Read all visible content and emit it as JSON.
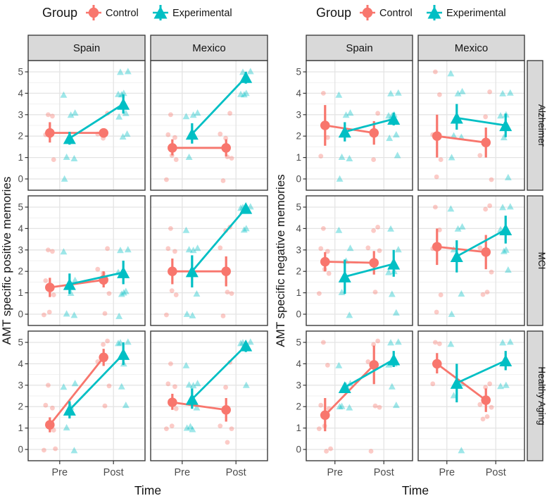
{
  "legend": {
    "title": "Group",
    "items": [
      {
        "label": "Control",
        "shape": "circle",
        "color": "#F8766D"
      },
      {
        "label": "Experimental",
        "shape": "triangle",
        "color": "#00BFC4"
      }
    ]
  },
  "colors": {
    "control": "#F8766D",
    "experimental": "#00BFC4",
    "strip_fill": "#D9D9D9",
    "strip_border": "#333333",
    "panel_border": "#3A3A3A",
    "grid_major": "#E4E4E4",
    "grid_minor": "#F1F1F1",
    "tick_text": "#4D4D4D",
    "title_text": "#141414"
  },
  "chart_data": [
    {
      "type": "line",
      "ylabel": "AMT specific positive memories",
      "xlabel": "Time",
      "x_categories": [
        "Pre",
        "Post"
      ],
      "ylim": [
        0,
        5
      ],
      "yticks": [
        0,
        1,
        2,
        3,
        4,
        5
      ],
      "col_facets": [
        "Spain",
        "Mexico"
      ],
      "row_facets": [
        "Alzheimer",
        "MCI",
        "Healthy Aging"
      ],
      "row_strips_visible": false,
      "legend_position": "top",
      "grid": true,
      "facets": [
        {
          "row": "Alzheimer",
          "col": "Spain",
          "series": [
            {
              "name": "Control",
              "means": [
                2.15,
                2.15
              ],
              "ci_low": [
                1.7,
                2.0
              ],
              "ci_high": [
                2.65,
                2.3
              ],
              "points_pre": [
                3,
                3,
                2,
                1
              ],
              "points_post": [
                3,
                2,
                2
              ]
            },
            {
              "name": "Experimental",
              "means": [
                1.9,
                3.5
              ],
              "ci_low": [
                1.6,
                3.05
              ],
              "ci_high": [
                2.2,
                3.95
              ],
              "points_pre": [
                4,
                3,
                3,
                1,
                1,
                0
              ],
              "points_post": [
                5,
                5,
                4,
                4,
                4,
                3,
                3,
                2,
                2
              ]
            }
          ]
        },
        {
          "row": "Alzheimer",
          "col": "Mexico",
          "series": [
            {
              "name": "Control",
              "means": [
                1.45,
                1.45
              ],
              "ci_low": [
                1.1,
                1.05
              ],
              "ci_high": [
                1.85,
                1.85
              ],
              "points_pre": [
                3,
                2,
                2,
                1,
                1,
                0
              ],
              "points_post": [
                3,
                2,
                2,
                1,
                1,
                0
              ]
            },
            {
              "name": "Experimental",
              "means": [
                2.1,
                4.75
              ],
              "ci_low": [
                1.65,
                4.45
              ],
              "ci_high": [
                2.6,
                5.0
              ],
              "points_pre": [
                3,
                3,
                3,
                1
              ],
              "points_post": [
                5,
                5,
                4,
                4,
                4
              ]
            }
          ]
        },
        {
          "row": "MCI",
          "col": "Spain",
          "series": [
            {
              "name": "Control",
              "means": [
                1.25,
                1.6
              ],
              "ci_low": [
                0.8,
                1.25
              ],
              "ci_high": [
                1.7,
                2.0
              ],
              "points_pre": [
                3,
                3,
                1.5,
                1,
                0,
                0
              ],
              "points_post": [
                3,
                2,
                2,
                1,
                0
              ]
            },
            {
              "name": "Experimental",
              "means": [
                1.4,
                1.95
              ],
              "ci_low": [
                0.95,
                1.4
              ],
              "ci_high": [
                1.9,
                2.5
              ],
              "points_pre": [
                3,
                1.5,
                1,
                0,
                0
              ],
              "points_post": [
                3,
                3,
                2,
                1,
                1,
                1,
                0
              ]
            }
          ]
        },
        {
          "row": "MCI",
          "col": "Mexico",
          "series": [
            {
              "name": "Control",
              "means": [
                2.0,
                2.0
              ],
              "ci_low": [
                1.4,
                1.3
              ],
              "ci_high": [
                2.6,
                2.7
              ],
              "points_pre": [
                4,
                3,
                3,
                1,
                1,
                0
              ],
              "points_post": [
                4,
                4,
                3,
                1,
                1,
                0
              ]
            },
            {
              "name": "Experimental",
              "means": [
                2.0,
                4.95
              ],
              "ci_low": [
                1.25,
                4.8
              ],
              "ci_high": [
                2.75,
                5.0
              ],
              "points_pre": [
                4,
                3,
                3,
                3,
                1,
                0,
                0
              ],
              "points_post": [
                5,
                5,
                5,
                4,
                4
              ]
            }
          ]
        },
        {
          "row": "Healthy Aging",
          "col": "Spain",
          "series": [
            {
              "name": "Control",
              "means": [
                1.15,
                4.3
              ],
              "ci_low": [
                0.8,
                3.9
              ],
              "ci_high": [
                1.5,
                4.7
              ],
              "points_pre": [
                3,
                2,
                2,
                1,
                1,
                0,
                0
              ],
              "points_post": [
                5,
                5,
                4,
                3,
                2
              ]
            },
            {
              "name": "Experimental",
              "means": [
                1.85,
                4.45
              ],
              "ci_low": [
                1.45,
                3.95
              ],
              "ci_high": [
                2.25,
                5.0
              ],
              "points_pre": [
                3,
                3,
                2,
                1,
                0
              ],
              "points_post": [
                5,
                5,
                5,
                4,
                3,
                2
              ]
            }
          ]
        },
        {
          "row": "Healthy Aging",
          "col": "Mexico",
          "series": [
            {
              "name": "Control",
              "means": [
                2.2,
                1.85
              ],
              "ci_low": [
                1.85,
                1.3
              ],
              "ci_high": [
                2.6,
                2.4
              ],
              "points_pre": [
                4,
                3,
                3,
                2,
                1,
                1
              ],
              "points_post": [
                4,
                3,
                1,
                1,
                0.3
              ]
            },
            {
              "name": "Experimental",
              "means": [
                2.35,
                4.85
              ],
              "ci_low": [
                1.9,
                4.55
              ],
              "ci_high": [
                2.85,
                5.0
              ],
              "points_pre": [
                4,
                3,
                3,
                3,
                2,
                1,
                1,
                1
              ],
              "points_post": [
                5,
                5,
                5,
                3
              ]
            }
          ]
        }
      ]
    },
    {
      "type": "line",
      "ylabel": "AMT specific negative memories",
      "xlabel": "Time",
      "x_categories": [
        "Pre",
        "Post"
      ],
      "ylim": [
        0,
        5
      ],
      "yticks": [
        0,
        1,
        2,
        3,
        4,
        5
      ],
      "col_facets": [
        "Spain",
        "Mexico"
      ],
      "row_facets": [
        "Alzheimer",
        "MCI",
        "Healthy Aging"
      ],
      "row_strips_visible": true,
      "legend_position": "top",
      "grid": true,
      "facets": [
        {
          "row": "Alzheimer",
          "col": "Spain",
          "series": [
            {
              "name": "Control",
              "means": [
                2.5,
                2.15
              ],
              "ci_low": [
                1.55,
                1.6
              ],
              "ci_high": [
                3.45,
                2.7
              ],
              "points_pre": [
                4,
                2,
                1
              ],
              "points_post": [
                3,
                1
              ]
            },
            {
              "name": "Experimental",
              "means": [
                2.2,
                2.8
              ],
              "ci_low": [
                1.75,
                2.5
              ],
              "ci_high": [
                2.65,
                3.1
              ],
              "points_pre": [
                4,
                3,
                3,
                1,
                1,
                0
              ],
              "points_post": [
                4,
                4,
                3,
                3,
                3,
                2,
                2,
                1
              ]
            }
          ]
        },
        {
          "row": "Alzheimer",
          "col": "Mexico",
          "series": [
            {
              "name": "Control",
              "means": [
                2.0,
                1.7
              ],
              "ci_low": [
                1.0,
                1.0
              ],
              "ci_high": [
                3.0,
                2.4
              ],
              "points_pre": [
                5,
                4,
                2,
                1,
                0
              ],
              "points_post": [
                4,
                3,
                1,
                0
              ]
            },
            {
              "name": "Experimental",
              "means": [
                2.85,
                2.5
              ],
              "ci_low": [
                2.3,
                1.95
              ],
              "ci_high": [
                3.5,
                3.05
              ],
              "points_pre": [
                5,
                4,
                4,
                2,
                2,
                1
              ],
              "points_post": [
                4,
                4,
                3,
                3,
                2,
                0
              ]
            }
          ]
        },
        {
          "row": "MCI",
          "col": "Spain",
          "series": [
            {
              "name": "Control",
              "means": [
                2.45,
                2.4
              ],
              "ci_low": [
                2.0,
                1.85
              ],
              "ci_high": [
                2.9,
                2.95
              ],
              "points_pre": [
                4,
                3,
                3,
                2,
                2,
                1
              ],
              "points_post": [
                4,
                4,
                3,
                3,
                1
              ]
            },
            {
              "name": "Experimental",
              "means": [
                1.75,
                2.35
              ],
              "ci_low": [
                0.95,
                1.75
              ],
              "ci_high": [
                2.55,
                3.0
              ],
              "points_pre": [
                4,
                3,
                2.5,
                1,
                0
              ],
              "points_post": [
                4,
                3,
                2,
                2,
                1,
                0
              ]
            }
          ]
        },
        {
          "row": "MCI",
          "col": "Mexico",
          "series": [
            {
              "name": "Control",
              "means": [
                3.15,
                2.9
              ],
              "ci_low": [
                2.3,
                2.1
              ],
              "ci_high": [
                4.0,
                3.7
              ],
              "points_pre": [
                5,
                4,
                3,
                1,
                0
              ],
              "points_post": [
                5,
                5,
                3,
                2,
                1,
                1
              ]
            },
            {
              "name": "Experimental",
              "means": [
                2.7,
                3.95
              ],
              "ci_low": [
                1.95,
                3.3
              ],
              "ci_high": [
                3.45,
                4.6
              ],
              "points_pre": [
                5,
                4,
                4,
                3,
                1,
                0
              ],
              "points_post": [
                5,
                5,
                4,
                3,
                3,
                2
              ]
            }
          ]
        },
        {
          "row": "Healthy Aging",
          "col": "Spain",
          "series": [
            {
              "name": "Control",
              "means": [
                1.6,
                3.95
              ],
              "ci_low": [
                0.85,
                3.05
              ],
              "ci_high": [
                2.4,
                4.85
              ],
              "points_pre": [
                5,
                4,
                2,
                2,
                1,
                1,
                0,
                0
              ],
              "points_post": [
                5,
                5,
                4,
                2,
                2,
                0
              ]
            },
            {
              "name": "Experimental",
              "means": [
                2.9,
                4.2
              ],
              "ci_low": [
                2.7,
                3.85
              ],
              "ci_high": [
                3.1,
                4.6
              ],
              "points_pre": [
                4,
                3,
                3,
                2,
                2,
                2
              ],
              "points_post": [
                5,
                5,
                4,
                4,
                3,
                2
              ]
            }
          ]
        },
        {
          "row": "Healthy Aging",
          "col": "Mexico",
          "series": [
            {
              "name": "Control",
              "means": [
                4.0,
                2.3
              ],
              "ci_low": [
                3.55,
                1.75
              ],
              "ci_high": [
                4.5,
                2.85
              ],
              "points_pre": [
                5,
                5,
                3
              ],
              "points_post": [
                3,
                3,
                2,
                2,
                1.5,
                1.5
              ]
            },
            {
              "name": "Experimental",
              "means": [
                3.1,
                4.15
              ],
              "ci_low": [
                2.2,
                3.7
              ],
              "ci_high": [
                4.0,
                4.6
              ],
              "points_pre": [
                5,
                3,
                3,
                2.5,
                0
              ],
              "points_post": [
                5,
                5,
                3,
                3
              ]
            }
          ]
        }
      ]
    }
  ]
}
